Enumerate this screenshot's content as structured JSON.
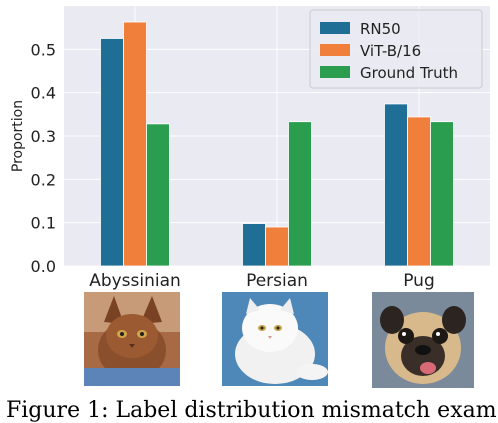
{
  "chart_data": {
    "type": "bar",
    "categories": [
      "Abyssinian",
      "Persian",
      "Pug"
    ],
    "series": [
      {
        "name": "RN50",
        "color": "#1f6e96",
        "values": [
          0.525,
          0.098,
          0.374
        ]
      },
      {
        "name": "ViT-B/16",
        "color": "#f07f3c",
        "values": [
          0.563,
          0.09,
          0.344
        ]
      },
      {
        "name": "Ground Truth",
        "color": "#2a9e4e",
        "values": [
          0.328,
          0.333,
          0.333
        ]
      }
    ],
    "ylabel": "Proportion",
    "xlabel": "",
    "ylim": [
      0,
      0.6
    ],
    "yticks": [
      "0.0",
      "0.1",
      "0.2",
      "0.3",
      "0.4",
      "0.5"
    ],
    "grid": true,
    "legend_position": "top-right",
    "background": "#eaeaf2"
  },
  "images": [
    {
      "name": "abyssinian-cat-photo"
    },
    {
      "name": "persian-cat-photo"
    },
    {
      "name": "pug-dog-photo"
    }
  ],
  "caption": "Figure 1: Label distribution mismatch exam"
}
